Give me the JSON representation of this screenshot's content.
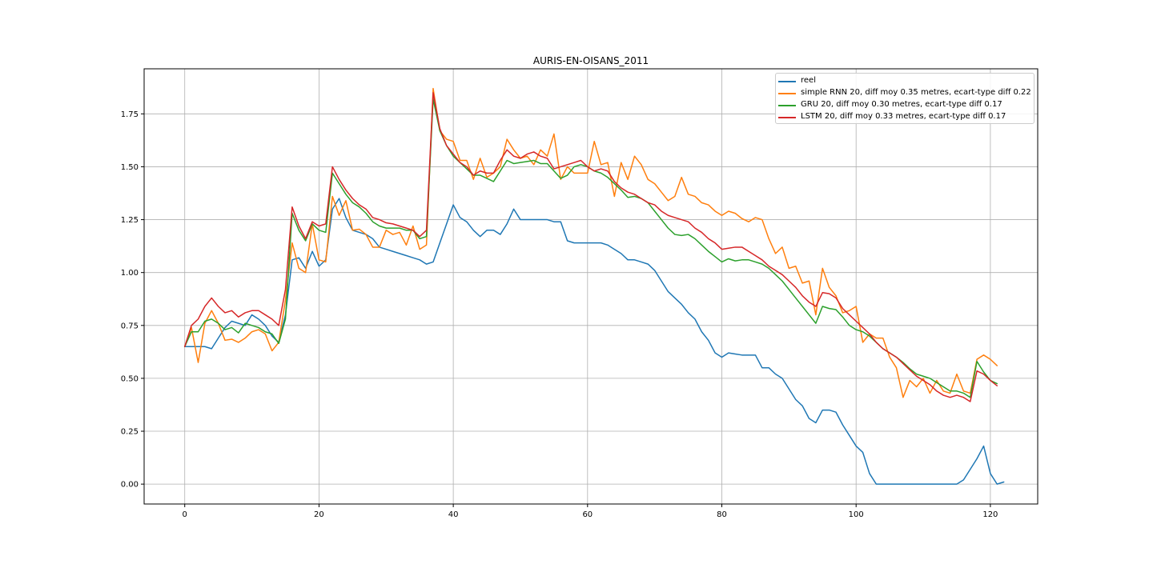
{
  "chart_data": {
    "type": "line",
    "title": "AURIS-EN-OISANS_2011",
    "xlabel": "",
    "ylabel": "",
    "xlim": [
      -6.05,
      127.05
    ],
    "ylim": [
      -0.094,
      1.963
    ],
    "x_ticks": [
      0,
      20,
      40,
      60,
      80,
      100,
      120
    ],
    "x_tick_labels": [
      "0",
      "20",
      "40",
      "60",
      "80",
      "100",
      "120"
    ],
    "y_ticks": [
      0.0,
      0.25,
      0.5,
      0.75,
      1.0,
      1.25,
      1.5,
      1.75
    ],
    "y_tick_labels": [
      "0.00",
      "0.25",
      "0.50",
      "0.75",
      "1.00",
      "1.25",
      "1.50",
      "1.75"
    ],
    "grid": true,
    "legend_position": "top-right",
    "series": [
      {
        "name": "reel",
        "color": "#1f77b4",
        "values": [
          0.65,
          0.65,
          0.65,
          0.65,
          0.64,
          0.69,
          0.74,
          0.77,
          0.76,
          0.75,
          0.8,
          0.78,
          0.75,
          0.7,
          0.67,
          0.8,
          1.06,
          1.07,
          1.02,
          1.1,
          1.03,
          1.06,
          1.3,
          1.35,
          1.26,
          1.2,
          1.19,
          1.18,
          1.16,
          1.12,
          1.11,
          1.1,
          1.09,
          1.08,
          1.07,
          1.06,
          1.04,
          1.05,
          1.14,
          1.23,
          1.32,
          1.26,
          1.24,
          1.2,
          1.17,
          1.2,
          1.2,
          1.18,
          1.23,
          1.3,
          1.25,
          1.25,
          1.25,
          1.25,
          1.25,
          1.24,
          1.24,
          1.15,
          1.14,
          1.14,
          1.14,
          1.14,
          1.14,
          1.13,
          1.11,
          1.09,
          1.06,
          1.06,
          1.05,
          1.04,
          1.01,
          0.96,
          0.91,
          0.88,
          0.85,
          0.81,
          0.78,
          0.72,
          0.68,
          0.62,
          0.6,
          0.62,
          0.615,
          0.61,
          0.61,
          0.61,
          0.55,
          0.55,
          0.52,
          0.5,
          0.45,
          0.4,
          0.37,
          0.31,
          0.29,
          0.35,
          0.35,
          0.34,
          0.28,
          0.23,
          0.18,
          0.15,
          0.05,
          0.0,
          0.0,
          0.0,
          0.0,
          0.0,
          0.0,
          0.0,
          0.0,
          0.0,
          0.0,
          0.0,
          0.0,
          0.0,
          0.02,
          0.07,
          0.12,
          0.18,
          0.05,
          0.0,
          0.01
        ]
      },
      {
        "name": "simple RNN 20, diff moy 0.35 metres, ecart-type diff 0.22",
        "color": "#ff7f0e",
        "values": [
          0.65,
          0.74,
          0.575,
          0.76,
          0.82,
          0.76,
          0.68,
          0.685,
          0.67,
          0.69,
          0.72,
          0.73,
          0.71,
          0.63,
          0.67,
          0.87,
          1.14,
          1.02,
          1.0,
          1.23,
          1.06,
          1.05,
          1.36,
          1.27,
          1.34,
          1.2,
          1.205,
          1.18,
          1.12,
          1.12,
          1.2,
          1.18,
          1.19,
          1.13,
          1.22,
          1.11,
          1.13,
          1.87,
          1.67,
          1.63,
          1.62,
          1.53,
          1.53,
          1.44,
          1.54,
          1.45,
          1.47,
          1.5,
          1.63,
          1.58,
          1.54,
          1.55,
          1.51,
          1.58,
          1.55,
          1.655,
          1.44,
          1.5,
          1.47,
          1.47,
          1.47,
          1.62,
          1.51,
          1.52,
          1.36,
          1.52,
          1.44,
          1.55,
          1.51,
          1.44,
          1.42,
          1.38,
          1.34,
          1.36,
          1.45,
          1.37,
          1.36,
          1.33,
          1.32,
          1.29,
          1.27,
          1.29,
          1.28,
          1.255,
          1.24,
          1.26,
          1.25,
          1.16,
          1.09,
          1.12,
          1.02,
          1.03,
          0.95,
          0.96,
          0.8,
          1.02,
          0.93,
          0.89,
          0.81,
          0.82,
          0.84,
          0.67,
          0.71,
          0.69,
          0.69,
          0.6,
          0.55,
          0.41,
          0.49,
          0.46,
          0.5,
          0.43,
          0.49,
          0.44,
          0.43,
          0.52,
          0.44,
          0.43,
          0.59,
          0.61,
          0.59,
          0.56
        ]
      },
      {
        "name": "GRU 20, diff moy 0.30 metres, ecart-type diff 0.17",
        "color": "#2ca02c",
        "values": [
          0.65,
          0.72,
          0.72,
          0.77,
          0.78,
          0.76,
          0.73,
          0.74,
          0.715,
          0.76,
          0.75,
          0.74,
          0.72,
          0.71,
          0.665,
          0.78,
          1.28,
          1.2,
          1.15,
          1.23,
          1.2,
          1.19,
          1.47,
          1.42,
          1.37,
          1.33,
          1.31,
          1.28,
          1.24,
          1.22,
          1.21,
          1.21,
          1.21,
          1.2,
          1.2,
          1.16,
          1.17,
          1.82,
          1.67,
          1.6,
          1.55,
          1.52,
          1.49,
          1.46,
          1.46,
          1.445,
          1.43,
          1.48,
          1.53,
          1.515,
          1.52,
          1.525,
          1.53,
          1.515,
          1.515,
          1.48,
          1.445,
          1.46,
          1.5,
          1.51,
          1.5,
          1.48,
          1.47,
          1.45,
          1.42,
          1.39,
          1.355,
          1.36,
          1.35,
          1.33,
          1.29,
          1.25,
          1.21,
          1.18,
          1.175,
          1.18,
          1.16,
          1.13,
          1.1,
          1.075,
          1.05,
          1.065,
          1.055,
          1.06,
          1.06,
          1.05,
          1.04,
          1.02,
          0.99,
          0.96,
          0.92,
          0.88,
          0.84,
          0.8,
          0.76,
          0.84,
          0.83,
          0.825,
          0.79,
          0.75,
          0.73,
          0.72,
          0.7,
          0.67,
          0.64,
          0.62,
          0.6,
          0.575,
          0.545,
          0.52,
          0.51,
          0.5,
          0.48,
          0.46,
          0.44,
          0.44,
          0.43,
          0.41,
          0.58,
          0.53,
          0.49,
          0.475
        ]
      },
      {
        "name": "LSTM 20, diff moy 0.33 metres, ecart-type diff 0.17",
        "color": "#d62728",
        "values": [
          0.65,
          0.75,
          0.78,
          0.84,
          0.88,
          0.84,
          0.81,
          0.82,
          0.79,
          0.81,
          0.82,
          0.82,
          0.8,
          0.78,
          0.75,
          0.92,
          1.31,
          1.22,
          1.16,
          1.24,
          1.22,
          1.23,
          1.5,
          1.44,
          1.39,
          1.35,
          1.32,
          1.3,
          1.26,
          1.25,
          1.235,
          1.23,
          1.22,
          1.21,
          1.2,
          1.17,
          1.2,
          1.85,
          1.68,
          1.6,
          1.56,
          1.52,
          1.5,
          1.46,
          1.48,
          1.47,
          1.47,
          1.53,
          1.58,
          1.55,
          1.54,
          1.56,
          1.57,
          1.55,
          1.54,
          1.49,
          1.5,
          1.51,
          1.52,
          1.53,
          1.5,
          1.48,
          1.49,
          1.48,
          1.43,
          1.4,
          1.38,
          1.37,
          1.35,
          1.33,
          1.32,
          1.29,
          1.27,
          1.26,
          1.25,
          1.24,
          1.21,
          1.19,
          1.16,
          1.14,
          1.11,
          1.115,
          1.12,
          1.12,
          1.1,
          1.08,
          1.06,
          1.03,
          1.01,
          0.99,
          0.96,
          0.93,
          0.89,
          0.86,
          0.84,
          0.905,
          0.9,
          0.88,
          0.83,
          0.8,
          0.77,
          0.74,
          0.71,
          0.67,
          0.64,
          0.62,
          0.6,
          0.57,
          0.54,
          0.51,
          0.49,
          0.47,
          0.44,
          0.42,
          0.41,
          0.42,
          0.41,
          0.39,
          0.535,
          0.52,
          0.49,
          0.465
        ]
      }
    ]
  }
}
